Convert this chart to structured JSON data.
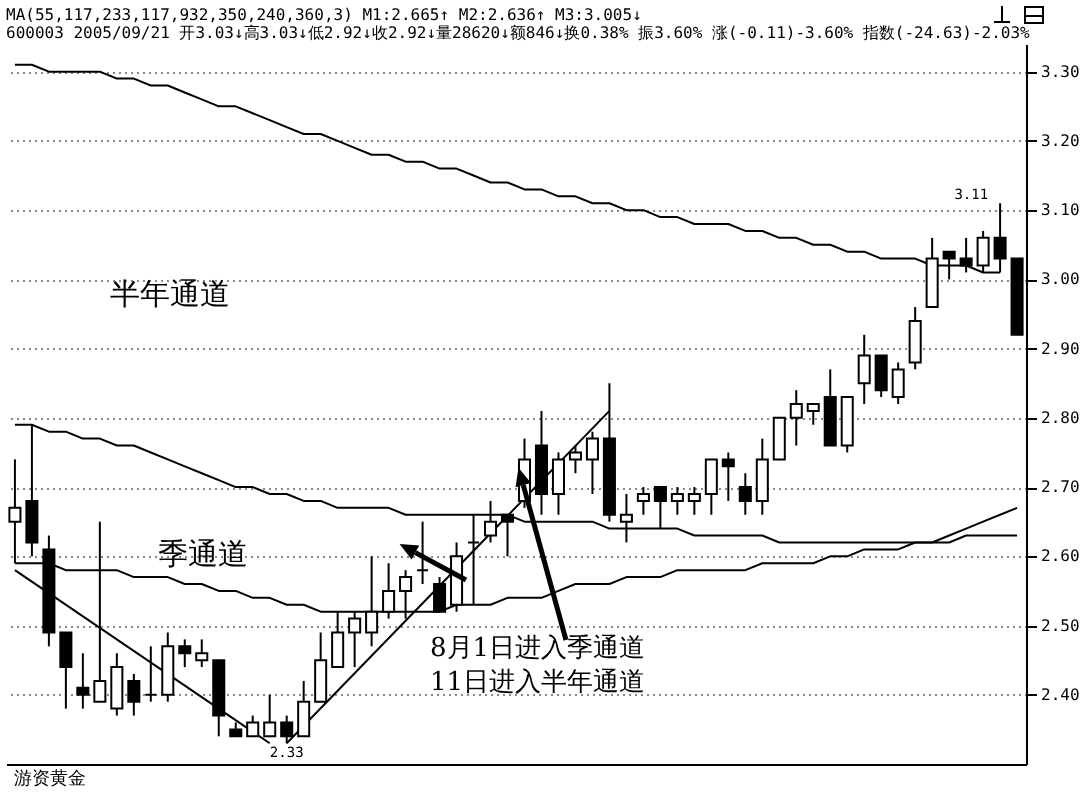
{
  "chart_data": {
    "type": "candlestick",
    "title": "MA(55,117,233,117,932,350,240,360,3) M1:2.665↑ M2:2.636↑ M3:3.005↓",
    "subtitle": "600003 2005/09/21 开3.03↓高3.03↓低2.92↓收2.92↓量28620↓额846↓换0.38% 振3.60% 涨(-0.11)-3.60% 指数(-24.63)-2.03%",
    "categories": [
      null,
      null,
      null,
      null,
      null,
      null,
      null,
      null,
      null,
      null,
      null,
      null,
      null,
      null,
      null,
      null,
      null,
      null,
      null,
      null,
      null,
      null,
      null,
      null,
      null,
      null,
      null,
      null,
      null,
      null,
      null,
      null,
      null,
      null,
      null,
      null,
      null,
      null,
      null,
      null,
      null,
      null,
      null,
      null,
      null,
      null,
      null,
      null,
      null,
      null,
      null,
      null,
      null,
      null,
      null,
      null,
      null,
      null,
      null,
      null
    ],
    "color": "#000000",
    "ohlc": [
      [
        2.65,
        2.74,
        2.59,
        2.67
      ],
      [
        2.68,
        2.79,
        2.6,
        2.62
      ],
      [
        2.61,
        2.63,
        2.47,
        2.49
      ],
      [
        2.49,
        2.49,
        2.38,
        2.44
      ],
      [
        2.41,
        2.46,
        2.38,
        2.4
      ],
      [
        2.39,
        2.65,
        2.39,
        2.42
      ],
      [
        2.38,
        2.46,
        2.37,
        2.44
      ],
      [
        2.42,
        2.43,
        2.37,
        2.39
      ],
      [
        2.4,
        2.47,
        2.39,
        2.4
      ],
      [
        2.4,
        2.49,
        2.39,
        2.47
      ],
      [
        2.47,
        2.48,
        2.44,
        2.46
      ],
      [
        2.45,
        2.48,
        2.44,
        2.46
      ],
      [
        2.45,
        2.45,
        2.34,
        2.37
      ],
      [
        2.35,
        2.36,
        2.34,
        2.34
      ],
      [
        2.34,
        2.37,
        2.34,
        2.36
      ],
      [
        2.34,
        2.4,
        2.34,
        2.36
      ],
      [
        2.36,
        2.37,
        2.33,
        2.34
      ],
      [
        2.34,
        2.42,
        2.34,
        2.39
      ],
      [
        2.39,
        2.49,
        2.39,
        2.45
      ],
      [
        2.44,
        2.52,
        2.44,
        2.49
      ],
      [
        2.49,
        2.52,
        2.44,
        2.51
      ],
      [
        2.49,
        2.6,
        2.47,
        2.52
      ],
      [
        2.52,
        2.59,
        2.51,
        2.55
      ],
      [
        2.55,
        2.58,
        2.51,
        2.57
      ],
      [
        2.58,
        2.65,
        2.56,
        2.58
      ],
      [
        2.56,
        2.57,
        2.52,
        2.52
      ],
      [
        2.53,
        2.62,
        2.52,
        2.6
      ],
      [
        2.62,
        2.66,
        2.53,
        2.62
      ],
      [
        2.63,
        2.68,
        2.62,
        2.65
      ],
      [
        2.66,
        2.66,
        2.6,
        2.65
      ],
      [
        2.68,
        2.77,
        2.67,
        2.74
      ],
      [
        2.76,
        2.81,
        2.66,
        2.69
      ],
      [
        2.69,
        2.75,
        2.66,
        2.74
      ],
      [
        2.74,
        2.76,
        2.72,
        2.75
      ],
      [
        2.74,
        2.78,
        2.69,
        2.77
      ],
      [
        2.77,
        2.85,
        2.65,
        2.66
      ],
      [
        2.65,
        2.69,
        2.62,
        2.66
      ],
      [
        2.68,
        2.7,
        2.66,
        2.69
      ],
      [
        2.7,
        2.7,
        2.64,
        2.68
      ],
      [
        2.68,
        2.7,
        2.66,
        2.69
      ],
      [
        2.68,
        2.7,
        2.66,
        2.69
      ],
      [
        2.69,
        2.74,
        2.66,
        2.74
      ],
      [
        2.74,
        2.75,
        2.68,
        2.73
      ],
      [
        2.7,
        2.72,
        2.66,
        2.68
      ],
      [
        2.68,
        2.77,
        2.66,
        2.74
      ],
      [
        2.74,
        2.8,
        2.74,
        2.8
      ],
      [
        2.8,
        2.84,
        2.76,
        2.82
      ],
      [
        2.81,
        2.82,
        2.79,
        2.82
      ],
      [
        2.83,
        2.87,
        2.76,
        2.76
      ],
      [
        2.76,
        2.83,
        2.75,
        2.83
      ],
      [
        2.85,
        2.92,
        2.82,
        2.89
      ],
      [
        2.89,
        2.89,
        2.83,
        2.84
      ],
      [
        2.83,
        2.88,
        2.82,
        2.87
      ],
      [
        2.88,
        2.96,
        2.87,
        2.94
      ],
      [
        2.96,
        3.06,
        2.96,
        3.03
      ],
      [
        3.04,
        3.04,
        3.0,
        3.03
      ],
      [
        3.03,
        3.06,
        3.01,
        3.02
      ],
      [
        3.02,
        3.07,
        3.01,
        3.06
      ],
      [
        3.06,
        3.11,
        3.01,
        3.03
      ],
      [
        3.03,
        3.03,
        2.92,
        2.92
      ]
    ],
    "series": [
      {
        "type": "line",
        "color": "#000000",
        "values": [
          3.31,
          3.31,
          3.3,
          3.3,
          3.3,
          3.3,
          3.29,
          3.29,
          3.28,
          3.28,
          3.27,
          3.26,
          3.25,
          3.25,
          3.24,
          3.23,
          3.22,
          3.21,
          3.21,
          3.2,
          3.19,
          3.18,
          3.18,
          3.17,
          3.17,
          3.16,
          3.16,
          3.15,
          3.14,
          3.14,
          3.13,
          3.13,
          3.12,
          3.12,
          3.11,
          3.11,
          3.1,
          3.1,
          3.09,
          3.09,
          3.08,
          3.08,
          3.08,
          3.07,
          3.07,
          3.06,
          3.06,
          3.05,
          3.05,
          3.04,
          3.04,
          3.03,
          3.03,
          3.03,
          3.02,
          3.02,
          3.02,
          3.01,
          3.01,
          null
        ]
      },
      {
        "type": "line",
        "color": "#000000",
        "values": [
          2.79,
          2.79,
          2.78,
          2.78,
          2.77,
          2.77,
          2.76,
          2.76,
          2.75,
          2.74,
          2.73,
          2.72,
          2.71,
          2.7,
          2.7,
          2.69,
          2.69,
          2.68,
          2.68,
          2.67,
          2.67,
          2.67,
          2.67,
          2.66,
          2.66,
          2.66,
          2.66,
          2.66,
          2.66,
          2.66,
          2.65,
          2.65,
          2.65,
          2.65,
          2.65,
          2.64,
          2.64,
          2.64,
          2.64,
          2.64,
          2.63,
          2.63,
          2.63,
          2.63,
          2.63,
          2.62,
          2.62,
          2.62,
          2.62,
          2.62,
          2.62,
          2.62,
          2.62,
          2.62,
          2.62,
          2.62,
          2.63,
          2.63,
          2.63,
          2.63
        ]
      },
      {
        "type": "line",
        "color": "#000000",
        "values": [
          2.59,
          2.59,
          2.59,
          2.58,
          2.58,
          2.58,
          2.58,
          2.57,
          2.57,
          2.57,
          2.56,
          2.56,
          2.55,
          2.55,
          2.54,
          2.54,
          2.53,
          2.53,
          2.52,
          2.52,
          2.52,
          2.52,
          2.52,
          2.52,
          2.52,
          2.52,
          2.53,
          2.53,
          2.53,
          2.54,
          2.54,
          2.54,
          2.55,
          2.56,
          2.56,
          2.56,
          2.57,
          2.57,
          2.57,
          2.58,
          2.58,
          2.58,
          2.58,
          2.58,
          2.59,
          2.59,
          2.59,
          2.59,
          2.6,
          2.6,
          2.61,
          2.61,
          2.61,
          2.62,
          2.62,
          2.63,
          2.64,
          2.65,
          2.66,
          2.67
        ]
      },
      {
        "type": "line",
        "color": "#000000",
        "values": [
          2.58,
          null,
          null,
          null,
          null,
          null,
          null,
          null,
          null,
          null,
          null,
          null,
          null,
          null,
          null,
          2.33,
          null,
          null,
          null,
          null,
          null,
          null,
          null,
          null,
          null,
          null,
          null,
          null,
          null,
          null,
          null,
          null,
          null,
          null,
          null,
          null,
          null,
          null,
          null,
          null,
          null,
          null,
          null,
          null,
          null,
          null,
          null,
          null,
          null,
          null,
          null,
          null,
          null,
          null,
          null,
          null,
          null,
          null,
          null,
          null
        ]
      },
      {
        "type": "line",
        "color": "#000000",
        "values": [
          null,
          null,
          null,
          null,
          null,
          null,
          null,
          null,
          null,
          null,
          null,
          null,
          null,
          null,
          null,
          null,
          2.33,
          null,
          null,
          null,
          null,
          null,
          null,
          null,
          null,
          null,
          null,
          null,
          null,
          null,
          null,
          null,
          null,
          null,
          null,
          2.81,
          null,
          null,
          null,
          null,
          null,
          null,
          null,
          null,
          null,
          null,
          null,
          null,
          null,
          null,
          null,
          null,
          null,
          null,
          null,
          null,
          null,
          null,
          null,
          null
        ]
      }
    ],
    "ylim": [
      2.3,
      3.34
    ],
    "yticks": [
      {
        "value": 2.4,
        "label": "2.40"
      },
      {
        "value": 2.5,
        "label": "2.50"
      },
      {
        "value": 2.6,
        "label": "2.60"
      },
      {
        "value": 2.7,
        "label": "2.70"
      },
      {
        "value": 2.8,
        "label": "2.80"
      },
      {
        "value": 2.9,
        "label": "2.90"
      },
      {
        "value": 3.0,
        "label": "3.00"
      },
      {
        "value": 3.1,
        "label": "3.10"
      },
      {
        "value": 3.2,
        "label": "3.20"
      },
      {
        "value": 3.3,
        "label": "3.30"
      }
    ],
    "grid": "y",
    "tick_labels": "y",
    "annotations": [
      "半年通道",
      "季通道",
      "8月1日进入季通道",
      "11日进入半年通道",
      "3.11",
      "2.33",
      "游资黄金"
    ]
  }
}
